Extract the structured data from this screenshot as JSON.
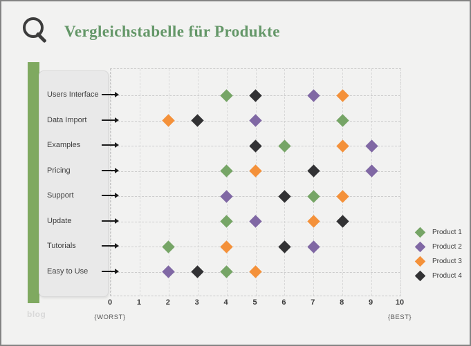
{
  "header": {
    "title": "Vergleichstabelle für Produkte",
    "icon": "magnifier-icon"
  },
  "chart_data": {
    "type": "scatter",
    "title": "Vergleichstabelle für Produkte",
    "categories": [
      "Users Interface",
      "Data Import",
      "Examples",
      "Pricing",
      "Support",
      "Update",
      "Tutorials",
      "Easy to Use"
    ],
    "series": [
      {
        "name": "Product 1",
        "color": "#76a566",
        "values": [
          4,
          8,
          6,
          4,
          7,
          4,
          2,
          4
        ]
      },
      {
        "name": "Product 2",
        "color": "#8068a4",
        "values": [
          7,
          5,
          9,
          9,
          4,
          5,
          7,
          2
        ]
      },
      {
        "name": "Product 3",
        "color": "#f4913a",
        "values": [
          8,
          2,
          8,
          5,
          8,
          7,
          4,
          5
        ]
      },
      {
        "name": "Product 4",
        "color": "#323234",
        "values": [
          5,
          3,
          5,
          7,
          6,
          8,
          6,
          3
        ]
      }
    ],
    "xlim": [
      0,
      10
    ],
    "x_ticks": [
      "0",
      "1",
      "2",
      "3",
      "4",
      "5",
      "6",
      "7",
      "8",
      "9",
      "10"
    ],
    "x_axis_min_label": "{WORST}",
    "x_axis_max_label": "{BEST}",
    "marker": "diamond",
    "grid": true,
    "legend_position": "right"
  },
  "footer": {
    "watermark": "blog"
  },
  "colors": {
    "accent_bar": "#7fa960",
    "title": "#649768",
    "panel": "#e9e9e9"
  }
}
